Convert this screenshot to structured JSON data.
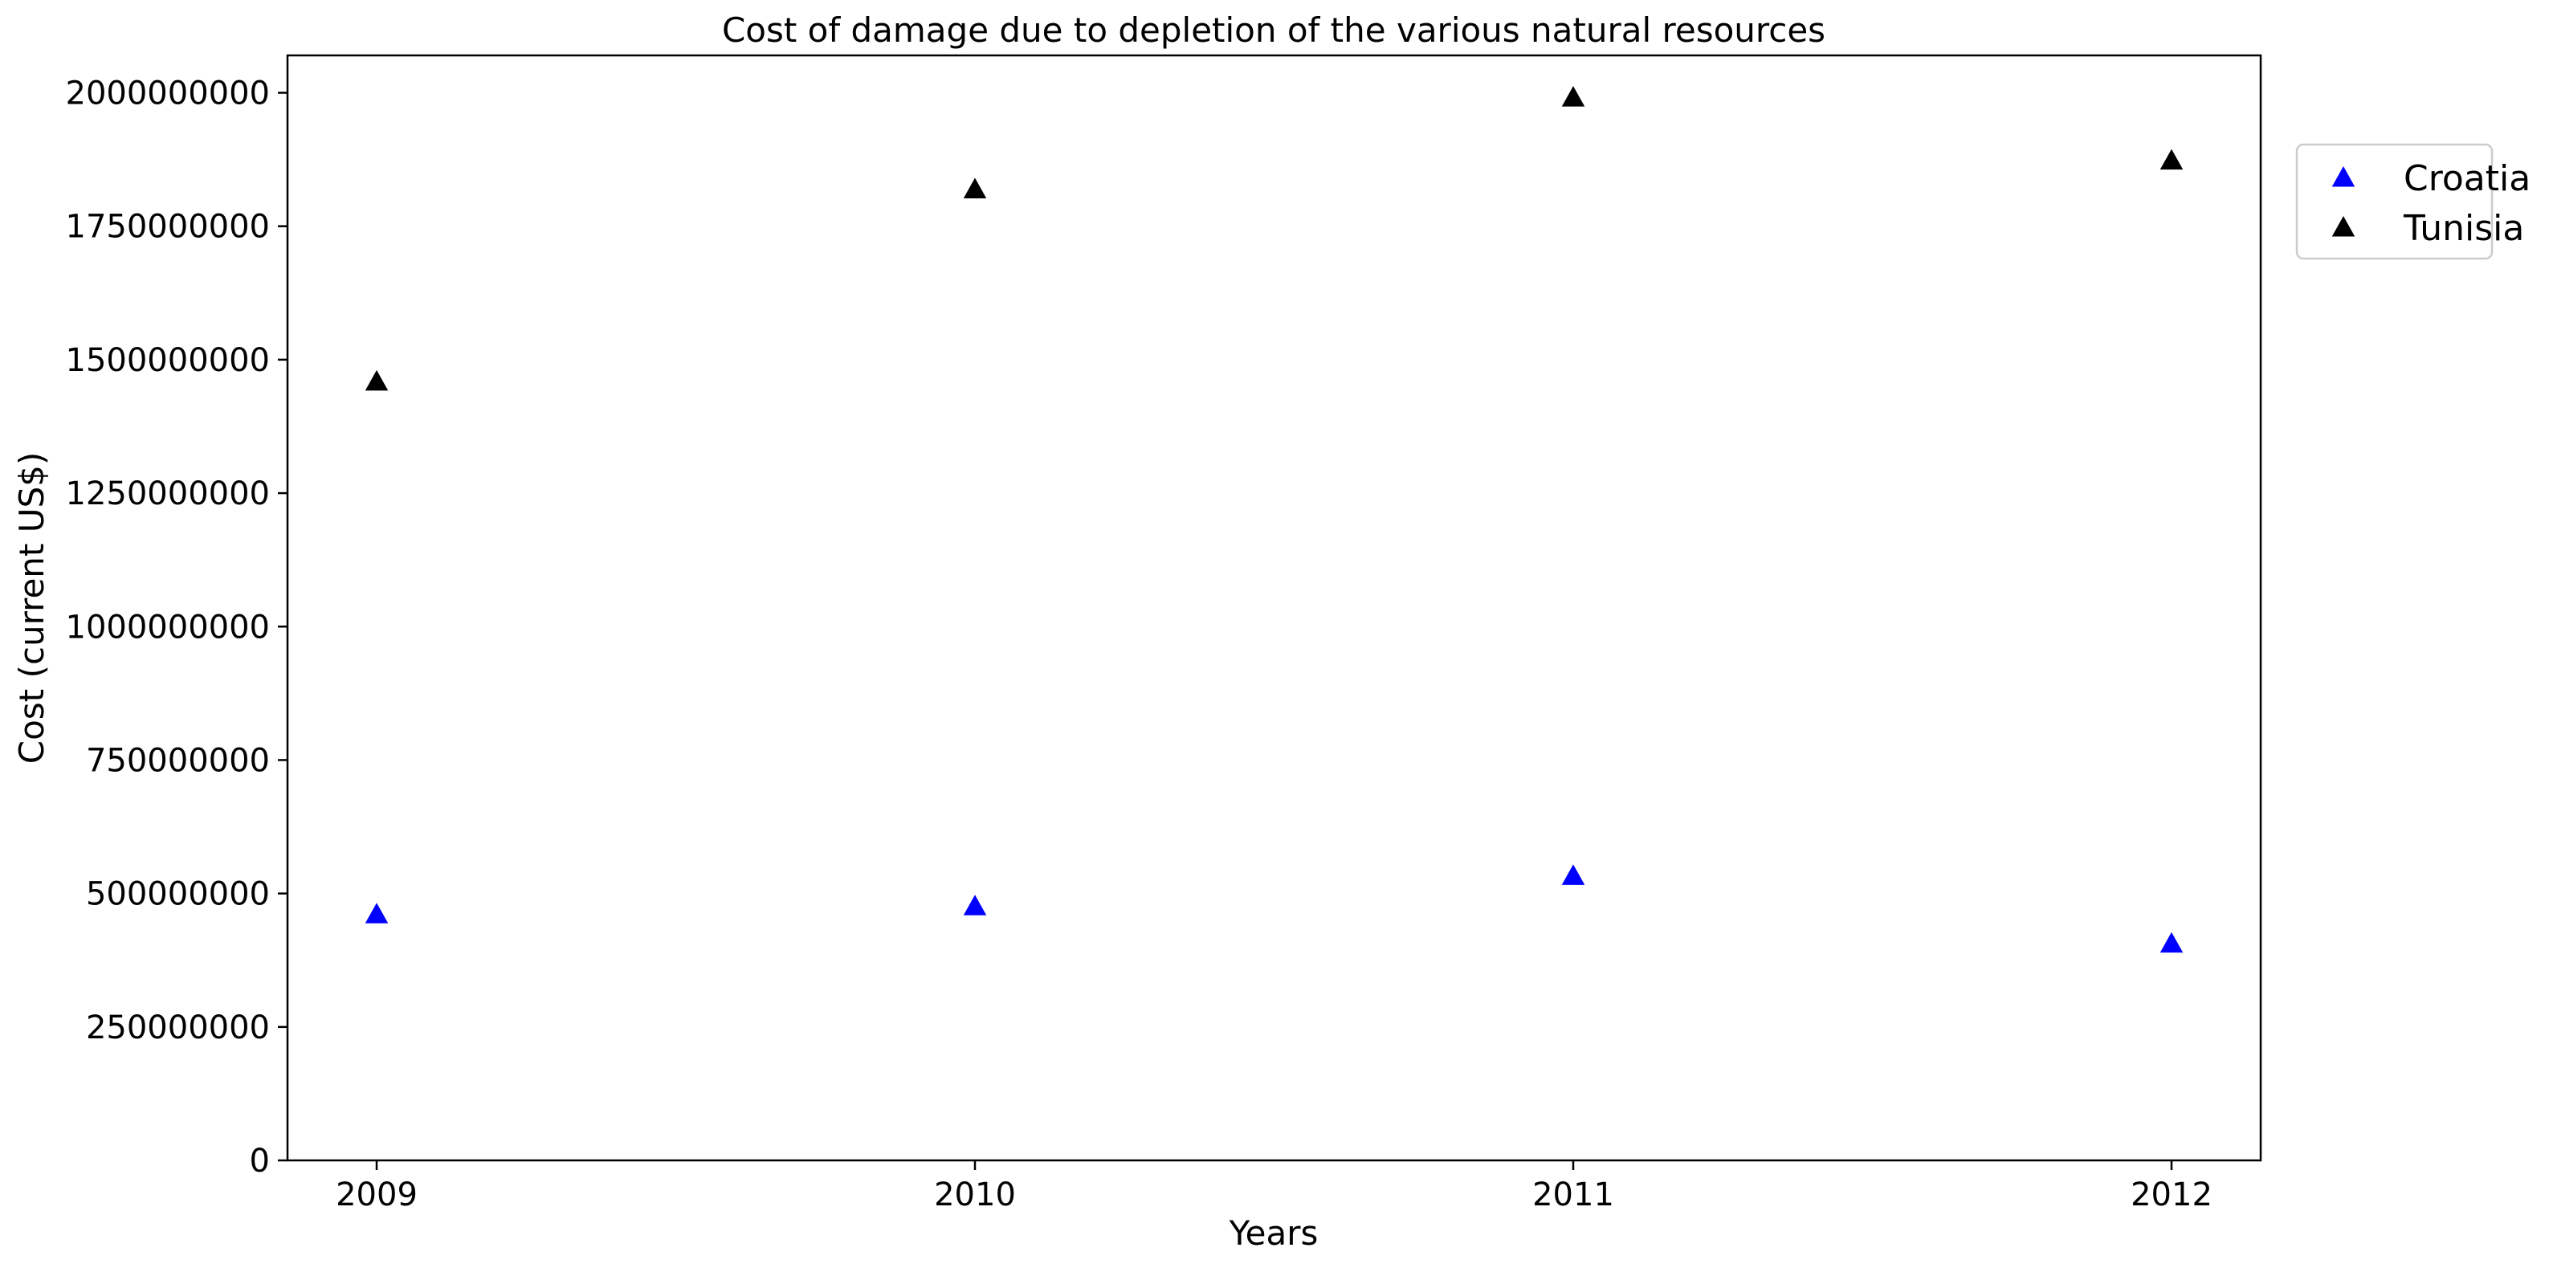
{
  "chart_data": {
    "type": "scatter",
    "title": "Cost of damage due to depletion of the various natural resources",
    "xlabel": "Years",
    "ylabel": "Cost (current US$)",
    "x": [
      "2009",
      "2010",
      "2011",
      "2012"
    ],
    "ylim": [
      0,
      2070000000
    ],
    "yticks": [
      0,
      250000000,
      500000000,
      750000000,
      1000000000,
      1250000000,
      1500000000,
      1750000000,
      2000000000
    ],
    "ytick_labels": [
      "0",
      "250000000",
      "500000000",
      "750000000",
      "1000000000",
      "1250000000",
      "1500000000",
      "1750000000",
      "2000000000"
    ],
    "grid": false,
    "legend_position": "outside-top-right",
    "marker": "triangle",
    "series": [
      {
        "name": "Croatia",
        "color": "#0000ff",
        "values": [
          460000000,
          475000000,
          532000000,
          405000000
        ]
      },
      {
        "name": "Tunisia",
        "color": "#000000",
        "values": [
          1458000000,
          1818000000,
          1990000000,
          1872000000
        ]
      }
    ]
  }
}
